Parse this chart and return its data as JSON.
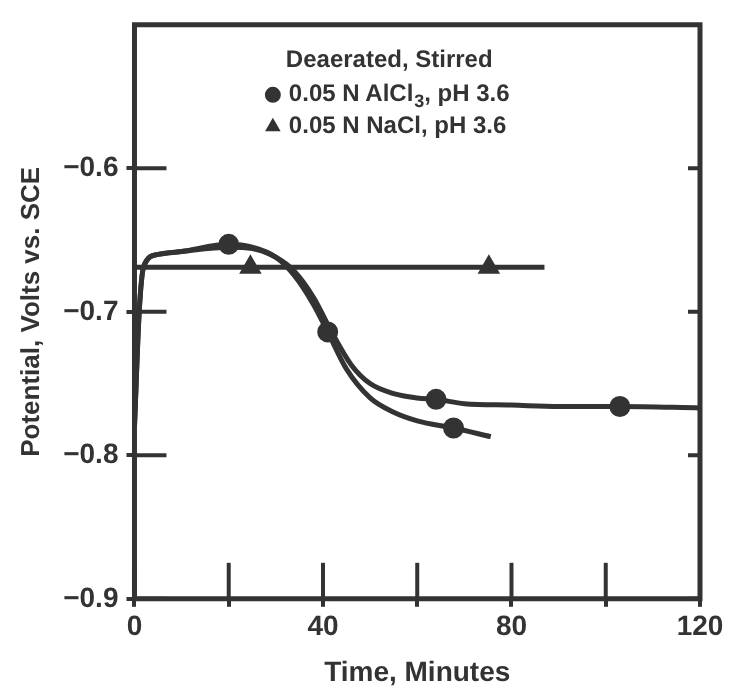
{
  "chart_data": {
    "type": "line",
    "xlabel": "Time, Minutes",
    "ylabel": "Potential, Volts vs. SCE",
    "legend_title": "Deaerated, Stirred",
    "legend": "top",
    "xlim": [
      0,
      120
    ],
    "xticks": [
      0,
      {
        "value": 20,
        "label": null
      },
      40,
      {
        "value": 60,
        "label": null
      },
      80,
      {
        "value": 100,
        "label": null
      },
      120
    ],
    "ylim": [
      -0.9,
      -0.5
    ],
    "yticks": [
      -0.9,
      -0.8,
      -0.7,
      -0.6
    ],
    "grid": false,
    "line_style": "solid",
    "series": [
      {
        "type": "scatter",
        "name": "0.05 N AlCl$_{3}$, pH 3.6",
        "marker": "circle",
        "color": "#333333",
        "x": [
          20,
          41,
          64,
          67.7,
          103
        ],
        "values": [
          -0.653,
          -0.714,
          -0.761,
          -0.781,
          -0.766
        ]
      },
      {
        "type": "scatter",
        "name": "0.05 N NaCl, pH 3.6",
        "marker": "triangle",
        "color": "#333333",
        "x": [
          24.6,
          75.2
        ],
        "values": [
          -0.669,
          -0.669
        ]
      },
      {
        "marker": "none",
        "color": "#333333",
        "x": [
          0,
          1,
          2,
          5,
          10,
          20,
          25,
          30,
          34,
          38,
          42,
          46,
          50,
          55,
          60,
          64,
          70,
          80,
          90,
          103,
          120
        ],
        "values": [
          -0.78,
          -0.7,
          -0.668,
          -0.66,
          -0.658,
          -0.655,
          -0.656,
          -0.662,
          -0.672,
          -0.69,
          -0.715,
          -0.737,
          -0.75,
          -0.757,
          -0.76,
          -0.761,
          -0.764,
          -0.765,
          -0.766,
          -0.766,
          -0.767
        ]
      },
      {
        "marker": "none",
        "color": "#333333",
        "x": [
          0,
          1,
          2,
          5,
          10,
          20,
          25,
          30,
          34,
          38,
          41,
          45,
          50,
          55,
          60,
          67.7,
          75.6
        ],
        "values": [
          -0.78,
          -0.7,
          -0.668,
          -0.66,
          -0.658,
          -0.653,
          -0.655,
          -0.662,
          -0.675,
          -0.695,
          -0.714,
          -0.74,
          -0.76,
          -0.77,
          -0.776,
          -0.781,
          -0.787
        ]
      },
      {
        "marker": "none",
        "color": "#333333",
        "x": [
          0,
          24.6,
          75.2,
          87
        ],
        "values": [
          -0.669,
          -0.669,
          -0.669,
          -0.669
        ]
      }
    ]
  }
}
